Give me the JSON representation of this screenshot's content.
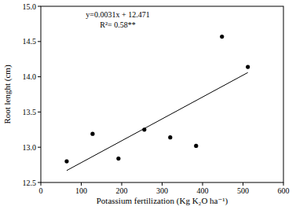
{
  "chart_data": {
    "type": "scatter",
    "x_label": "Potassium fertilization (Kg K₂O ha⁻¹)",
    "y_label": "Root lenght (cm)",
    "annotations": [
      "y=0.0031x + 12.471",
      "R²= 0.58**"
    ],
    "series": [
      {
        "type": "scatter",
        "color": "#000000",
        "marker": "circle",
        "x": [
          64,
          128,
          192,
          256,
          320,
          384,
          448,
          512
        ],
        "values": [
          12.8,
          13.19,
          12.84,
          13.25,
          13.14,
          13.02,
          14.57,
          14.14
        ]
      },
      {
        "type": "line",
        "color": "#000000",
        "line_style": "solid",
        "x": [
          64,
          512
        ],
        "values": [
          12.67,
          14.06
        ]
      }
    ],
    "xlim": [
      0,
      600
    ],
    "xticks": [
      0,
      100,
      200,
      300,
      400,
      500,
      600
    ],
    "ylim": [
      12.5,
      15.0
    ],
    "yticks": [
      12.5,
      {
        "value": 13.0,
        "label": "13.0"
      },
      13.5,
      {
        "value": 14.0,
        "label": "14.0"
      },
      14.5,
      {
        "value": 15.0,
        "label": "15.0"
      }
    ],
    "grid": false
  }
}
